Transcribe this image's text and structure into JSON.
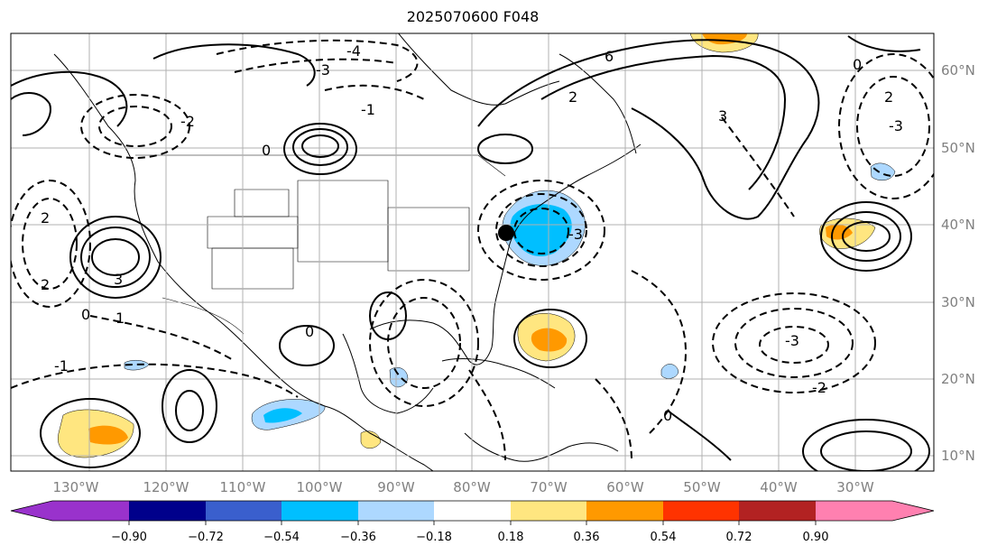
{
  "title": "2025070600 F048",
  "map": {
    "lon_labels": [
      "130°W",
      "120°W",
      "110°W",
      "100°W",
      "90°W",
      "80°W",
      "70°W",
      "60°W",
      "50°W",
      "40°W",
      "30°W"
    ],
    "lat_labels": [
      "60°N",
      "50°N",
      "40°N",
      "30°N",
      "20°N",
      "10°N"
    ],
    "contour_labels": [
      "-4",
      "-3",
      "-2",
      "-1",
      "0",
      "6",
      "3",
      "2",
      "1",
      "-3",
      "2",
      "0",
      "0",
      "3",
      "2",
      "-3",
      "0",
      "-2",
      "-1",
      "-3",
      "2",
      "0"
    ],
    "grid": true,
    "marker": "black dot (storm center)"
  },
  "colorbar": {
    "tick_labels": [
      "−0.90",
      "−0.72",
      "−0.54",
      "−0.36",
      "−0.18",
      "0.18",
      "0.36",
      "0.54",
      "0.72",
      "0.90"
    ],
    "colors": [
      "#9932cc",
      "#00008b",
      "#3a5fcd",
      "#00bfff",
      "#add8ff",
      "#ffffff",
      "#ffe680",
      "#ff9900",
      "#ff3300",
      "#b22222",
      "#ff80b0"
    ]
  }
}
